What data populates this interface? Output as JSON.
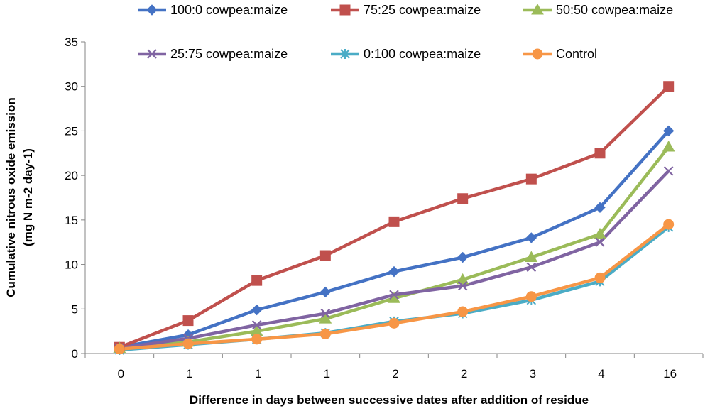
{
  "chart_data": {
    "type": "line",
    "title": "",
    "xlabel": "Difference in days between successive dates after addition of residue",
    "ylabel_line1": "Cumulative nitrous oxide emission",
    "ylabel_line2": "(mg N m-2 day-1)",
    "categories": [
      "0",
      "1",
      "1",
      "1",
      "2",
      "2",
      "3",
      "4",
      "16"
    ],
    "ylim": [
      0,
      35
    ],
    "yticks": [
      0,
      5,
      10,
      15,
      20,
      25,
      30,
      35
    ],
    "series": [
      {
        "name": "100:0 cowpea:maize",
        "color": "#4472C4",
        "marker": "diamond",
        "values": [
          0.7,
          2.1,
          4.9,
          6.9,
          9.2,
          10.8,
          13.0,
          16.4,
          25.0
        ]
      },
      {
        "name": "75:25 cowpea:maize",
        "color": "#C0504D",
        "marker": "square",
        "values": [
          0.7,
          3.7,
          8.2,
          11.0,
          14.8,
          17.4,
          19.6,
          22.5,
          30.0
        ]
      },
      {
        "name": "50:50 cowpea:maize",
        "color": "#9BBB59",
        "marker": "triangle",
        "values": [
          0.6,
          1.3,
          2.5,
          3.9,
          6.2,
          8.3,
          10.8,
          13.4,
          23.2
        ]
      },
      {
        "name": "25:75 cowpea:maize",
        "color": "#8064A2",
        "marker": "x",
        "values": [
          0.6,
          1.7,
          3.2,
          4.5,
          6.6,
          7.6,
          9.7,
          12.5,
          20.5
        ]
      },
      {
        "name": "0:100 cowpea:maize",
        "color": "#4BACC6",
        "marker": "star",
        "values": [
          0.4,
          1.0,
          1.6,
          2.3,
          3.6,
          4.5,
          6.0,
          8.1,
          14.2
        ]
      },
      {
        "name": "Control",
        "color": "#F79646",
        "marker": "circle",
        "values": [
          0.5,
          1.1,
          1.6,
          2.2,
          3.4,
          4.7,
          6.4,
          8.5,
          14.5
        ]
      }
    ],
    "legend_position": "top"
  }
}
